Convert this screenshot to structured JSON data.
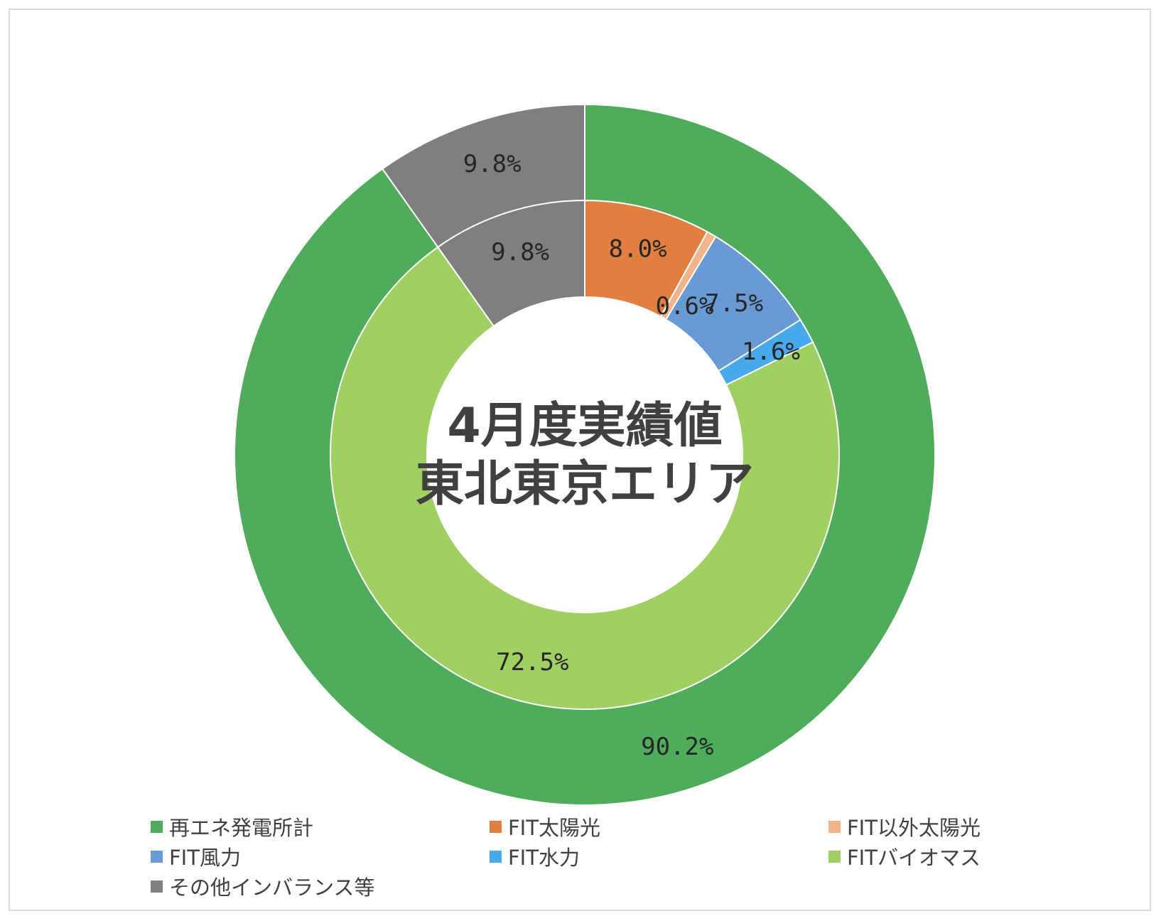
{
  "chart_data": {
    "type": "donut",
    "title": "4月度実績値\n東北東京エリア",
    "title_lines": [
      "4月度実績値",
      "東北東京エリア"
    ],
    "rings": [
      {
        "name": "outer",
        "slices": [
          {
            "label": "再エネ発電所計",
            "value": 90.2,
            "display": "90.2%",
            "color": "#4fac5b"
          },
          {
            "label": "その他インバランス等",
            "value": 9.8,
            "display": "9.8%",
            "color": "#7f7f7f"
          }
        ]
      },
      {
        "name": "inner",
        "slices": [
          {
            "label": "FIT太陽光",
            "value": 8.0,
            "display": "8.0%",
            "color": "#e07f3f"
          },
          {
            "label": "FIT以外太陽光",
            "value": 0.6,
            "display": "0.6%",
            "color": "#f0b38a"
          },
          {
            "label": "FIT風力",
            "value": 7.5,
            "display": "7.5%",
            "color": "#6a9ad3"
          },
          {
            "label": "FIT水力",
            "value": 1.6,
            "display": "1.6%",
            "color": "#48a9ec"
          },
          {
            "label": "FITバイオマス",
            "value": 72.5,
            "display": "72.5%",
            "color": "#a0cf62"
          },
          {
            "label": "その他インバランス等",
            "value": 9.8,
            "display": "9.8%",
            "color": "#7f7f7f"
          }
        ]
      }
    ],
    "legend": [
      {
        "label": "再エネ発電所計",
        "color": "#4fac5b"
      },
      {
        "label": "FIT太陽光",
        "color": "#e07f3f"
      },
      {
        "label": "FIT以外太陽光",
        "color": "#f0b38a"
      },
      {
        "label": "FIT風力",
        "color": "#6a9ad3"
      },
      {
        "label": "FIT水力",
        "color": "#48a9ec"
      },
      {
        "label": "FITバイオマス",
        "color": "#a0cf62"
      },
      {
        "label": "その他インバランス等",
        "color": "#7f7f7f"
      }
    ],
    "legend_position": "bottom"
  }
}
